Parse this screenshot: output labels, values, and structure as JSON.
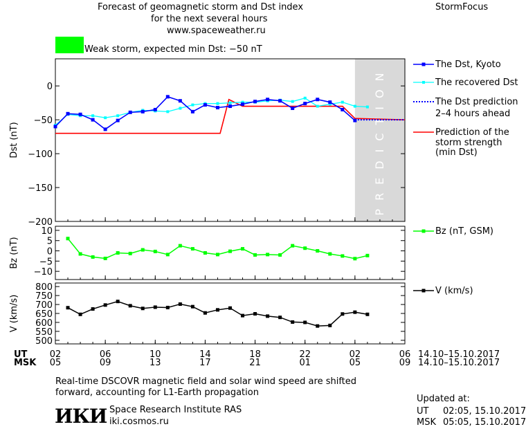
{
  "header": {
    "title_line1": "Forecast of geomagnetic storm and Dst index",
    "title_line2": "for the next several hours",
    "url": "www.spaceweather.ru",
    "brand": "StormFocus",
    "storm_text": "Weak storm, expected min Dst: −50 nT",
    "storm_color": "#00ff00"
  },
  "legend": {
    "dst_kyoto": "The Dst, Kyoto",
    "dst_recovered": "The recovered Dst",
    "dst_pred_1": "The Dst prediction",
    "dst_pred_2": "2–4 hours ahead",
    "strength_1": "Prediction of the",
    "strength_2": "storm strength",
    "strength_3": "(min Dst)",
    "bz": "Bz (nT, GSM)",
    "v": "V (km/s)"
  },
  "axes": {
    "dst_label": "Dst (nT)",
    "bz_label": "Bz (nT)",
    "v_label": "V (km/s)",
    "prediction": "PREDICTION",
    "ut_label": "UT",
    "msk_label": "MSK",
    "ut_ticks": [
      "02",
      "06",
      "10",
      "14",
      "18",
      "22",
      "02",
      "06"
    ],
    "msk_ticks": [
      "05",
      "09",
      "13",
      "17",
      "21",
      "01",
      "05",
      "09"
    ],
    "date_range_ut": "14.10–15.10.2017",
    "date_range_msk": "14.10–15.10.2017"
  },
  "footer": {
    "note_1": "Real-time DSCOVR magnetic field and solar wind speed are shifted",
    "note_2": "forward, accounting for L1-Earth propagation",
    "institute": "Space Research Institute RAS",
    "site": "iki.cosmos.ru",
    "logo": "ИКИ",
    "updated": "Updated at:",
    "updated_ut_label": "UT",
    "updated_ut": "02:05, 15.10.2017",
    "updated_msk_label": "MSK",
    "updated_msk": "05:05, 15.10.2017"
  },
  "colors": {
    "kyoto": "#0000ff",
    "recovered": "#00ffff",
    "prediction_line": "#0000ff",
    "strength": "#ff0000",
    "bz": "#00ff00",
    "v": "#000000",
    "prediction_band": "#d9d9d9"
  },
  "chart_data": [
    {
      "type": "line",
      "ylabel": "Dst (nT)",
      "ylim": [
        -200,
        40
      ],
      "xlim_hours": [
        0,
        28
      ],
      "yticks": [
        0,
        -50,
        -100,
        -150,
        -200
      ],
      "prediction_start_hour": 24,
      "series": [
        {
          "name": "The Dst, Kyoto",
          "x": [
            0,
            1,
            2,
            3,
            4,
            5,
            6,
            7,
            8,
            9,
            10,
            11,
            12,
            13,
            14,
            15,
            16,
            17,
            18,
            19,
            20,
            21,
            22,
            23,
            24
          ],
          "y": [
            -60,
            -41,
            -42,
            -50,
            -64,
            -51,
            -39,
            -38,
            -35,
            -16,
            -22,
            -38,
            -28,
            -32,
            -30,
            -27,
            -23,
            -20,
            -22,
            -33,
            -26,
            -20,
            -24,
            -35,
            -51
          ]
        },
        {
          "name": "The recovered Dst",
          "x": [
            0,
            1,
            2,
            3,
            4,
            5,
            6,
            7,
            8,
            9,
            10,
            11,
            12,
            13,
            14,
            15,
            16,
            17,
            18,
            19,
            20,
            21,
            22,
            23,
            24,
            25
          ],
          "y": [
            -58,
            -42,
            -44,
            -44,
            -47,
            -44,
            -39,
            -36,
            -37,
            -38,
            -33,
            -28,
            -26,
            -26,
            -25,
            -24,
            -24,
            -22,
            -21,
            -23,
            -18,
            -30,
            -27,
            -24,
            -30,
            -31
          ]
        },
        {
          "name": "The Dst prediction 2–4 hours ahead",
          "x": [
            24,
            28
          ],
          "y": [
            -50,
            -50
          ]
        },
        {
          "name": "Prediction of the storm strength (min Dst)",
          "x": [
            0,
            13.2,
            13.9,
            15,
            23,
            24,
            28
          ],
          "y": [
            -70,
            -70,
            -20,
            -30,
            -30,
            -48,
            -50
          ]
        }
      ]
    },
    {
      "type": "line",
      "ylabel": "Bz (nT)",
      "ylim": [
        -14,
        12
      ],
      "yticks": [
        10,
        5,
        0,
        -5,
        -10
      ],
      "series": [
        {
          "name": "Bz (nT, GSM)",
          "x": [
            1,
            2,
            3,
            4,
            5,
            6,
            7,
            8,
            9,
            10,
            11,
            12,
            13,
            14,
            15,
            16,
            17,
            18,
            19,
            20,
            21,
            22,
            23,
            24,
            25
          ],
          "y": [
            6,
            -1.5,
            -3,
            -3.7,
            -1,
            -1.3,
            0.5,
            -0.3,
            -1.8,
            2.5,
            1,
            -1,
            -1.8,
            -0.2,
            1,
            -2,
            -1.8,
            -2,
            2.5,
            1.3,
            0,
            -1.5,
            -2.5,
            -3.8,
            -2.3
          ]
        }
      ]
    },
    {
      "type": "line",
      "ylabel": "V (km/s)",
      "ylim": [
        480,
        820
      ],
      "yticks": [
        800,
        750,
        700,
        650,
        600,
        550,
        500
      ],
      "series": [
        {
          "name": "V (km/s)",
          "x": [
            1,
            2,
            3,
            4,
            5,
            6,
            7,
            8,
            9,
            10,
            11,
            12,
            13,
            14,
            15,
            16,
            17,
            18,
            19,
            20,
            21,
            22,
            23,
            24,
            25
          ],
          "y": [
            682,
            645,
            675,
            697,
            717,
            693,
            678,
            685,
            683,
            702,
            688,
            653,
            670,
            680,
            638,
            648,
            635,
            628,
            602,
            600,
            580,
            583,
            647,
            657,
            645
          ]
        }
      ]
    }
  ]
}
